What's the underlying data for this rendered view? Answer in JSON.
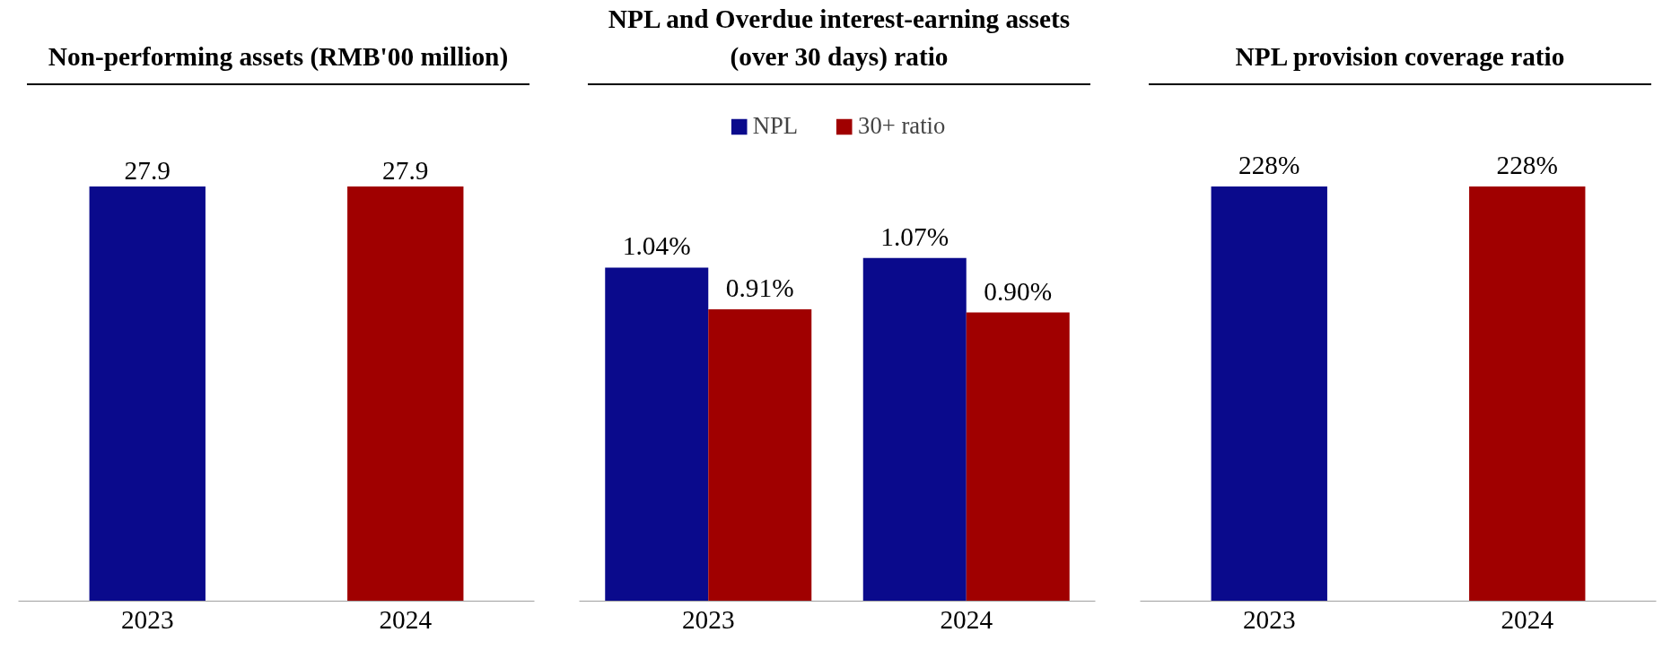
{
  "chart_data": [
    {
      "type": "bar",
      "title": "Non-performing assets (RMB'00 million)",
      "categories": [
        "2023",
        "2024"
      ],
      "values": [
        27.9,
        27.9
      ],
      "colors": [
        "#0a0a8c",
        "#a00000"
      ],
      "data_labels": true,
      "grid": false,
      "legend": false,
      "tick_labels": "x"
    },
    {
      "type": "bar",
      "title": "NPL and Overdue interest-earning assets (over 30 days) ratio",
      "categories": [
        "2023",
        "2024"
      ],
      "series": [
        {
          "name": "NPL",
          "color": "#0a0a8c",
          "values": [
            1.04,
            1.07
          ],
          "value_labels": [
            "1.04%",
            "1.07%"
          ]
        },
        {
          "name": "30+ ratio",
          "color": "#a00000",
          "values": [
            0.91,
            0.9
          ],
          "value_labels": [
            "0.91%",
            "0.90%"
          ]
        }
      ],
      "grid": false,
      "legend": "top",
      "tick_labels": "x"
    },
    {
      "type": "bar",
      "title": "NPL provision coverage ratio",
      "categories": [
        "2023",
        "2024"
      ],
      "values": [
        228,
        228
      ],
      "value_labels": [
        "228%",
        "228%"
      ],
      "colors": [
        "#0a0a8c",
        "#a00000"
      ],
      "grid": false,
      "legend": false,
      "tick_labels": "x"
    }
  ]
}
